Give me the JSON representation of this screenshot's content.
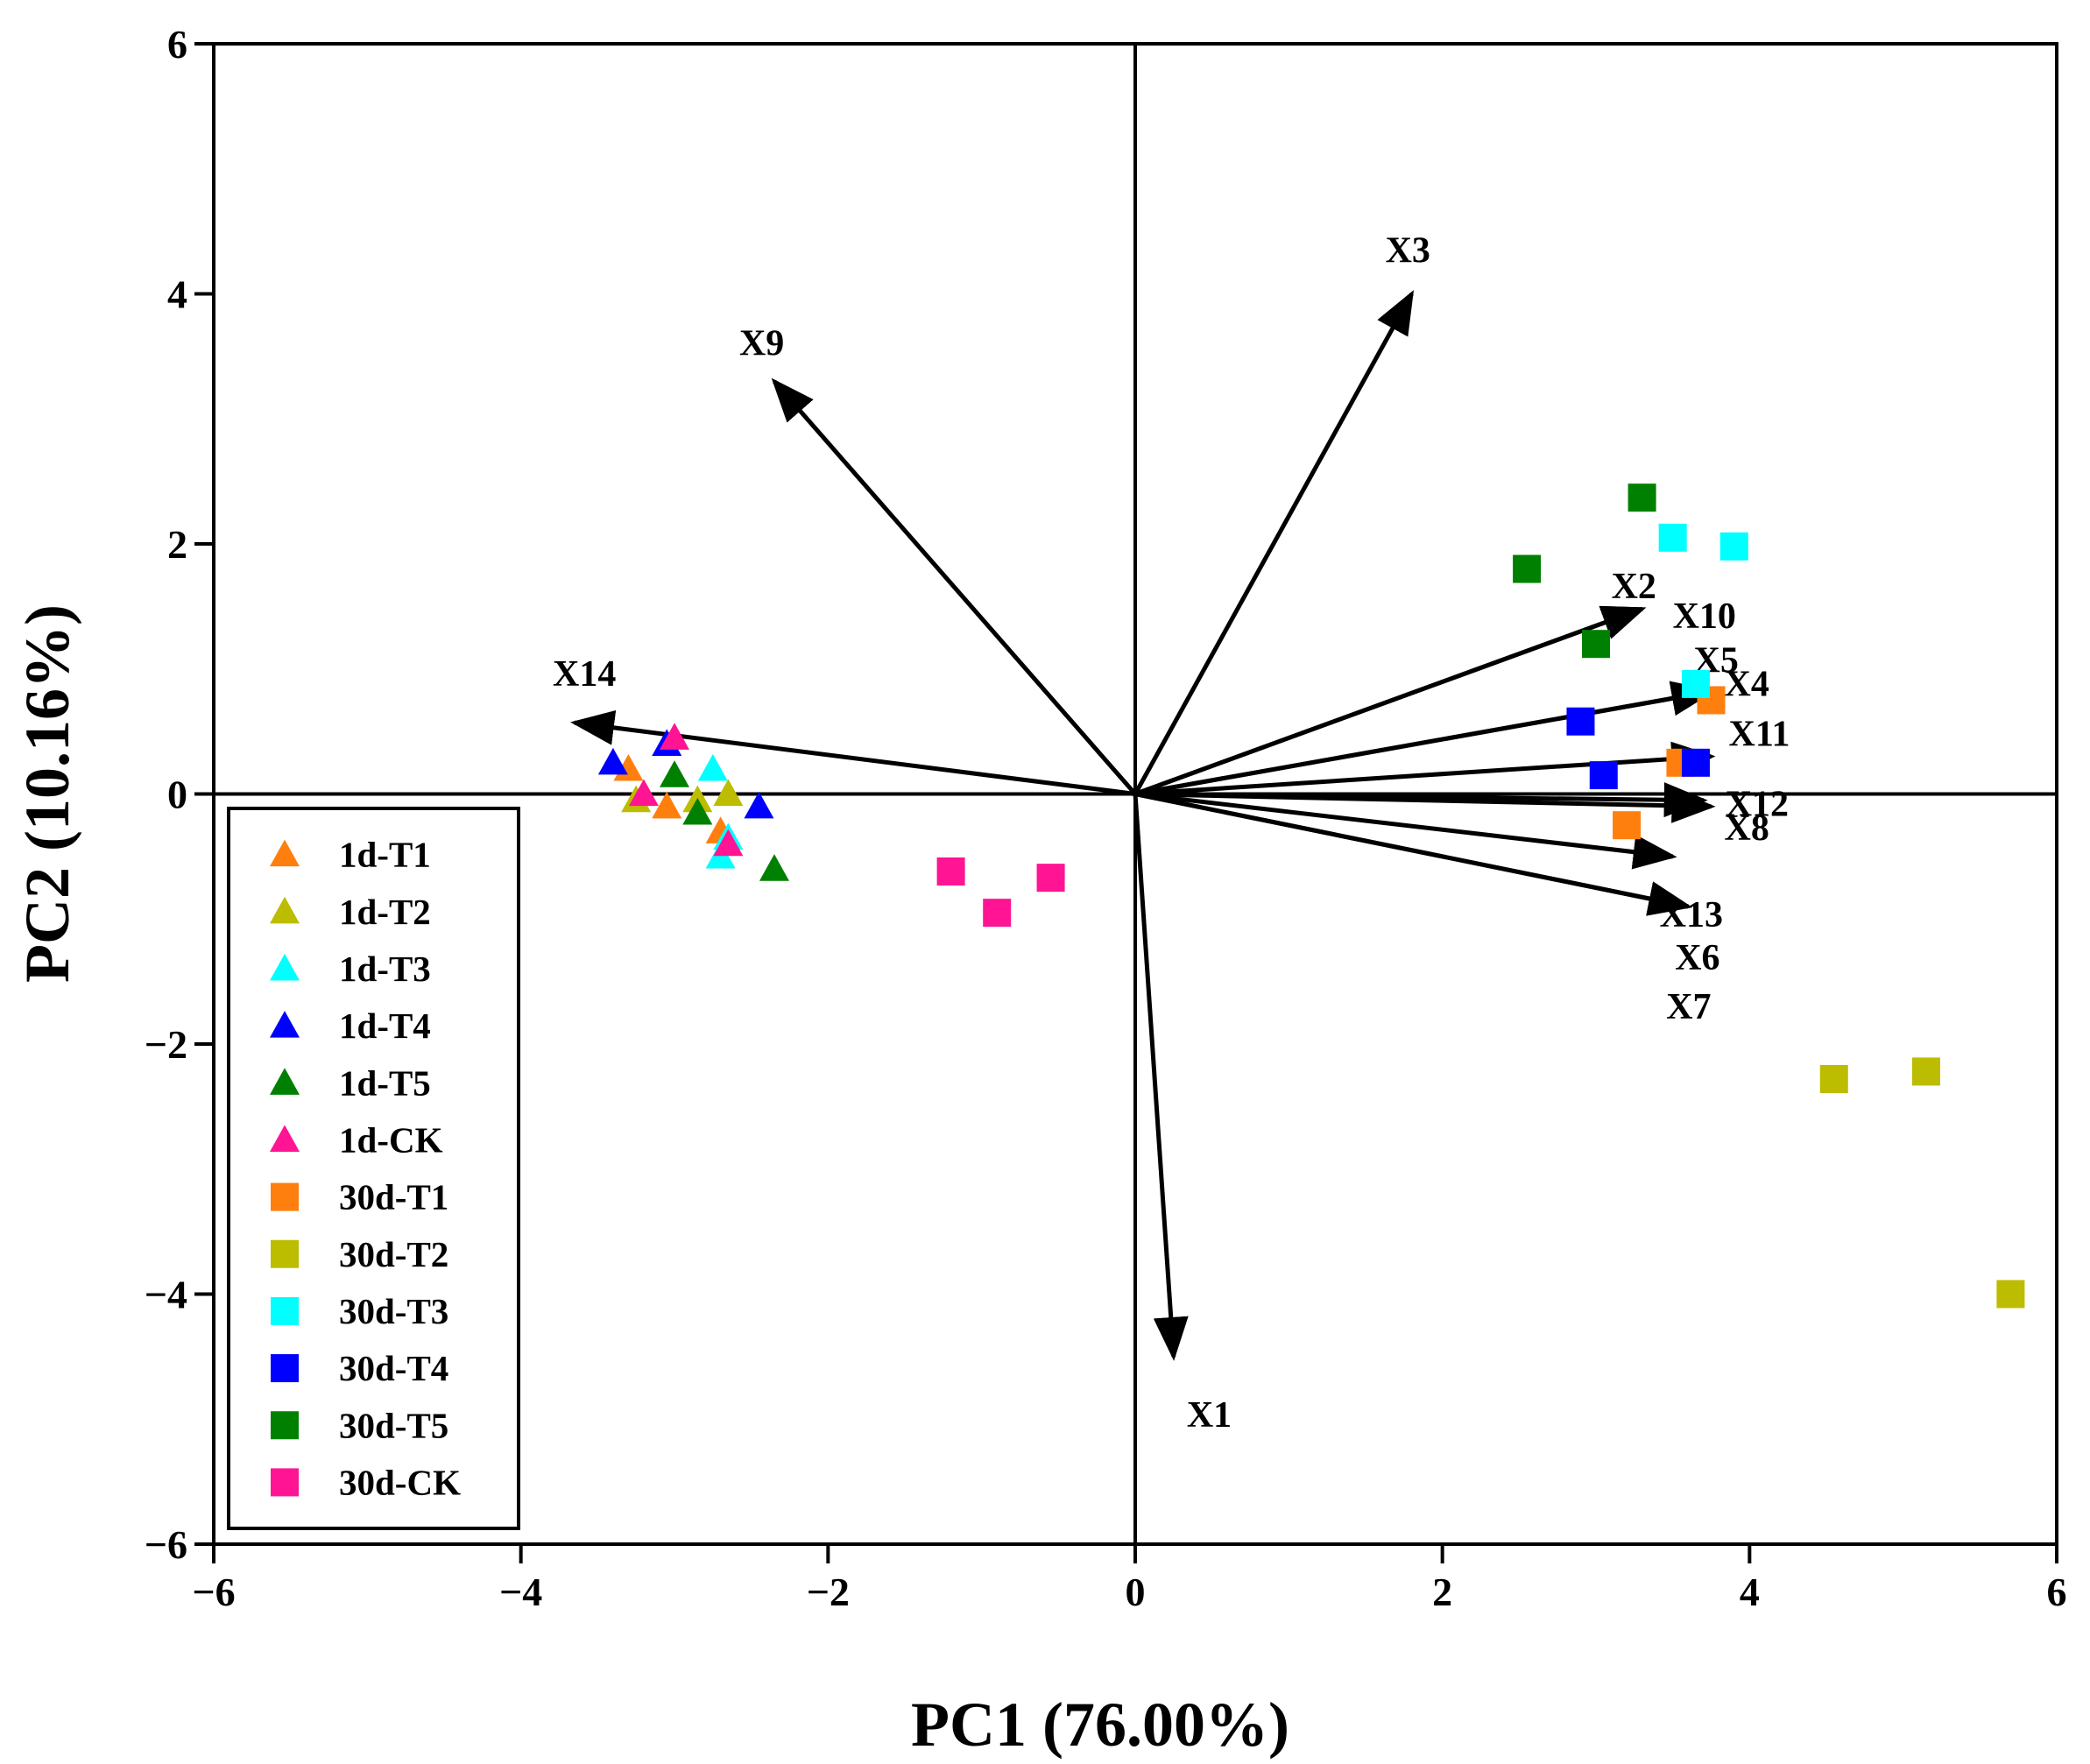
{
  "chart_data": {
    "type": "scatter",
    "title": "",
    "xlabel": "PC1 (76.00%)",
    "ylabel": "PC2 (10.16%)",
    "xlim": [
      -6,
      6
    ],
    "ylim": [
      -6,
      6
    ],
    "x_ticks": [
      -6,
      -4,
      -2,
      0,
      2,
      4,
      6
    ],
    "y_ticks": [
      -6,
      -4,
      -2,
      0,
      2,
      4,
      6
    ],
    "x_tick_labels": [
      "−6",
      "−4",
      "−2",
      "0",
      "2",
      "4",
      "6"
    ],
    "y_tick_labels": [
      "−6",
      "−4",
      "−2",
      "0",
      "2",
      "4",
      "6"
    ],
    "legend_position": "bottom-left",
    "series": [
      {
        "name": "1d-T1",
        "marker": "triangle",
        "color": "#FF7F0E",
        "points": [
          [
            -3.3,
            0.2
          ],
          [
            -3.05,
            -0.1
          ],
          [
            -2.7,
            -0.3
          ]
        ]
      },
      {
        "name": "1d-T2",
        "marker": "triangle",
        "color": "#BCBD00",
        "points": [
          [
            -3.25,
            -0.05
          ],
          [
            -2.85,
            -0.05
          ],
          [
            -2.65,
            0.0
          ]
        ]
      },
      {
        "name": "1d-T3",
        "marker": "triangle",
        "color": "#00FFFF",
        "points": [
          [
            -2.75,
            0.2
          ],
          [
            -2.7,
            -0.5
          ],
          [
            -2.65,
            -0.35
          ]
        ]
      },
      {
        "name": "1d-T4",
        "marker": "triangle",
        "color": "#0000FF",
        "points": [
          [
            -3.4,
            0.25
          ],
          [
            -3.05,
            0.4
          ],
          [
            -2.45,
            -0.1
          ]
        ]
      },
      {
        "name": "1d-T5",
        "marker": "triangle",
        "color": "#008000",
        "points": [
          [
            -3.0,
            0.15
          ],
          [
            -2.85,
            -0.15
          ],
          [
            -2.35,
            -0.6
          ]
        ]
      },
      {
        "name": "1d-CK",
        "marker": "triangle",
        "color": "#FF1493",
        "points": [
          [
            -3.0,
            0.45
          ],
          [
            -3.2,
            0.0
          ],
          [
            -2.65,
            -0.4
          ]
        ]
      },
      {
        "name": "30d-T1",
        "marker": "square",
        "color": "#FF7F0E",
        "points": [
          [
            3.75,
            0.75
          ],
          [
            3.55,
            0.25
          ],
          [
            3.2,
            -0.25
          ]
        ]
      },
      {
        "name": "30d-T2",
        "marker": "square",
        "color": "#BCBD00",
        "points": [
          [
            4.55,
            -2.28
          ],
          [
            5.15,
            -2.22
          ],
          [
            5.7,
            -4.0
          ]
        ]
      },
      {
        "name": "30d-T3",
        "marker": "square",
        "color": "#00FFFF",
        "points": [
          [
            3.5,
            2.05
          ],
          [
            3.9,
            1.98
          ],
          [
            3.65,
            0.88
          ]
        ]
      },
      {
        "name": "30d-T4",
        "marker": "square",
        "color": "#0000FF",
        "points": [
          [
            2.9,
            0.58
          ],
          [
            3.05,
            0.15
          ],
          [
            3.65,
            0.25
          ]
        ]
      },
      {
        "name": "30d-T5",
        "marker": "square",
        "color": "#008000",
        "points": [
          [
            3.3,
            2.37
          ],
          [
            2.55,
            1.8
          ],
          [
            3.0,
            1.2
          ]
        ]
      },
      {
        "name": "30d-CK",
        "marker": "square",
        "color": "#FF1493",
        "points": [
          [
            -1.2,
            -0.62
          ],
          [
            -0.9,
            -0.95
          ],
          [
            -0.55,
            -0.67
          ]
        ]
      }
    ],
    "loadings": [
      {
        "name": "X1",
        "x": 0.25,
        "y": -4.5
      },
      {
        "name": "X2",
        "x": 3.3,
        "y": 1.48
      },
      {
        "name": "X3",
        "x": 1.8,
        "y": 4.0
      },
      {
        "name": "X4",
        "x": 3.75,
        "y": 0.82
      },
      {
        "name": "X5",
        "x": 3.75,
        "y": 0.82
      },
      {
        "name": "X6",
        "x": 3.6,
        "y": -0.9
      },
      {
        "name": "X7",
        "x": 3.6,
        "y": -0.9
      },
      {
        "name": "X8",
        "x": 3.75,
        "y": -0.1
      },
      {
        "name": "X9",
        "x": -2.35,
        "y": 3.3
      },
      {
        "name": "X10",
        "x": 3.3,
        "y": 1.48
      },
      {
        "name": "X11",
        "x": 3.75,
        "y": 0.3
      },
      {
        "name": "X12",
        "x": 3.7,
        "y": -0.05
      },
      {
        "name": "X13",
        "x": 3.5,
        "y": -0.5
      },
      {
        "name": "X14",
        "x": -3.65,
        "y": 0.57
      }
    ]
  }
}
